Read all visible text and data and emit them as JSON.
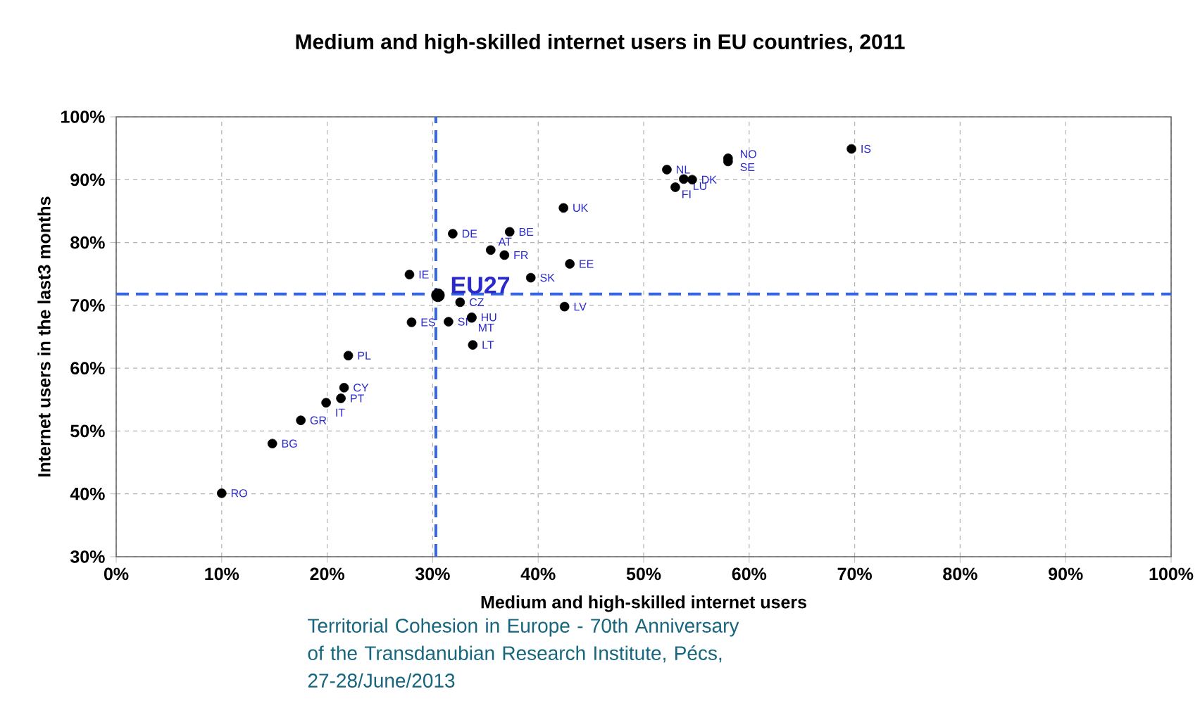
{
  "chart_data": {
    "type": "scatter",
    "title": "Medium and high-skilled internet users in EU countries, 2011",
    "xlabel": "Medium and high-skilled internet users",
    "ylabel": "Internet users in the last3 months",
    "series": [
      {
        "color": "#000000",
        "x": [
          10,
          14.8,
          17.5,
          19.9,
          21.3,
          21.6,
          22.0,
          27.8,
          28.0,
          32.6,
          31.5,
          33.7,
          33.7,
          33.8,
          31.9,
          37.3,
          35.5,
          36.8,
          39.3,
          42.4,
          43.0,
          42.5,
          52.2,
          53.8,
          54.6,
          53.0,
          58.0,
          58.0,
          69.7
        ],
        "values": [
          40.1,
          48.0,
          51.7,
          54.5,
          55.2,
          56.9,
          62.0,
          74.9,
          67.3,
          70.5,
          67.4,
          68.1,
          68.0,
          63.7,
          81.4,
          81.7,
          78.8,
          78.0,
          74.4,
          85.5,
          76.6,
          69.8,
          91.6,
          90.1,
          90.0,
          88.8,
          93.4,
          92.9,
          94.9
        ],
        "value_labels": [
          "RO",
          "BG",
          "GR",
          "IT",
          "PT",
          "CY",
          "PL",
          "IE",
          "ES",
          "CZ",
          "SI",
          "HU",
          "MT",
          "LT",
          "DE",
          "BE",
          "AT",
          "FR",
          "SK",
          "UK",
          "EE",
          "LV",
          "NL",
          "LU",
          "DK",
          "FI",
          "NO",
          "SE",
          "IS"
        ]
      },
      {
        "color": "#000000",
        "x": [
          30.5
        ],
        "values": [
          71.6
        ],
        "value_labels": [
          "EU27"
        ]
      }
    ],
    "xlim": [
      0,
      100
    ],
    "ylim": [
      30,
      100
    ],
    "xticks": [
      {
        "value": 0,
        "label": "0%"
      },
      {
        "value": 10,
        "label": "10%"
      },
      {
        "value": 20,
        "label": "20%"
      },
      {
        "value": 30,
        "label": "30%"
      },
      {
        "value": 40,
        "label": "40%"
      },
      {
        "value": 50,
        "label": "50%"
      },
      {
        "value": 60,
        "label": "60%"
      },
      {
        "value": 70,
        "label": "70%"
      },
      {
        "value": 80,
        "label": "80%"
      },
      {
        "value": 90,
        "label": "90%"
      },
      {
        "value": 100,
        "label": "100%"
      }
    ],
    "yticks": [
      {
        "value": 30,
        "label": "30%"
      },
      {
        "value": 40,
        "label": "40%"
      },
      {
        "value": 50,
        "label": "50%"
      },
      {
        "value": 60,
        "label": "60%"
      },
      {
        "value": 70,
        "label": "70%"
      },
      {
        "value": 80,
        "label": "80%"
      },
      {
        "value": 90,
        "label": "90%"
      },
      {
        "value": 100,
        "label": "100%"
      }
    ],
    "ref_lines": [
      {
        "axis": "x",
        "value": 30.3,
        "color": "#3366e6",
        "line_style": "dashed"
      },
      {
        "axis": "y",
        "value": 71.8,
        "color": "#3366e6",
        "line_style": "dashed"
      }
    ],
    "grid": true,
    "annotations": [
      "Territorial Cohesion in Europe - 70th Anniversary of the Transdanubian Research Institute, Pécs, 27-28/June/2013"
    ]
  }
}
